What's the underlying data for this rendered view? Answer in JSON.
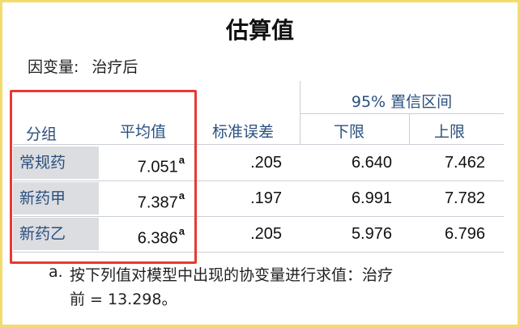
{
  "title": "估算值",
  "dependent": {
    "label": "因变量:",
    "value": "治疗后"
  },
  "headers": {
    "group": "分组",
    "mean": "平均值",
    "se": "标准误差",
    "ci": "95% 置信区间",
    "lower": "下限",
    "upper": "上限"
  },
  "rows": [
    {
      "group": "常规药",
      "mean": "7.051",
      "sup": "a",
      "se": ".205",
      "lower": "6.640",
      "upper": "7.462"
    },
    {
      "group": "新药甲",
      "mean": "7.387",
      "sup": "a",
      "se": ".197",
      "lower": "6.991",
      "upper": "7.782"
    },
    {
      "group": "新药乙",
      "mean": "6.386",
      "sup": "a",
      "se": ".205",
      "lower": "5.976",
      "upper": "6.796"
    }
  ],
  "footnote": {
    "marker": "a.",
    "line1": "按下列值对模型中出现的协变量进行求值：治疗",
    "line2": "前 = 13.298。"
  },
  "colors": {
    "highlight_box": "#e73a30",
    "frame": "#f2dc6e",
    "header_text": "#2a4f7f"
  }
}
